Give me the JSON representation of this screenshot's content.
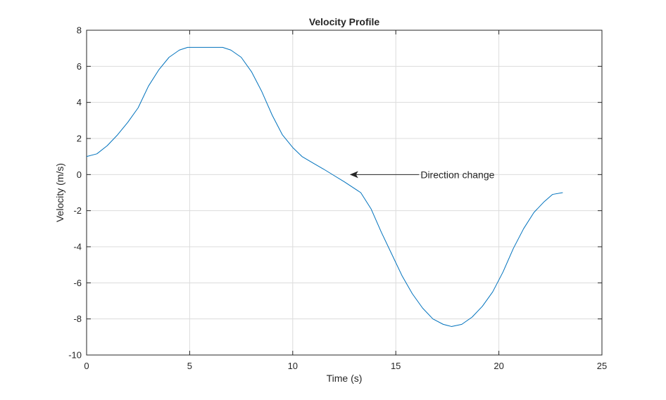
{
  "chart_data": {
    "type": "line",
    "title": "Velocity Profile",
    "xlabel": "Time (s)",
    "ylabel": "Velocity (m/s)",
    "xlim": [
      0,
      25
    ],
    "ylim": [
      -10,
      8
    ],
    "xticks": [
      0,
      5,
      10,
      15,
      20,
      25
    ],
    "yticks": [
      -10,
      -8,
      -6,
      -4,
      -2,
      0,
      2,
      4,
      6,
      8
    ],
    "grid": true,
    "legend": "none",
    "series": [
      {
        "color": "#0072BD",
        "x": [
          0,
          0.5,
          1,
          1.5,
          2,
          2.5,
          3,
          3.5,
          4,
          4.5,
          4.9,
          5.5,
          6,
          6.6,
          7,
          7.5,
          8,
          8.5,
          9,
          9.5,
          10,
          10.45,
          11,
          11.5,
          12,
          12.5,
          13.3,
          13.8,
          14.3,
          14.8,
          15.3,
          15.8,
          16.3,
          16.8,
          17.3,
          17.7,
          18.2,
          18.7,
          19.2,
          19.7,
          20.2,
          20.7,
          21.2,
          21.7,
          22.2,
          22.6,
          23.1
        ],
        "y": [
          1.0,
          1.15,
          1.6,
          2.2,
          2.9,
          3.7,
          4.9,
          5.8,
          6.5,
          6.9,
          7.05,
          7.05,
          7.05,
          7.05,
          6.9,
          6.5,
          5.7,
          4.6,
          3.3,
          2.2,
          1.5,
          1.0,
          0.63,
          0.3,
          -0.05,
          -0.4,
          -1.0,
          -1.9,
          -3.2,
          -4.4,
          -5.6,
          -6.6,
          -7.4,
          -8.0,
          -8.3,
          -8.42,
          -8.3,
          -7.9,
          -7.3,
          -6.5,
          -5.4,
          -4.1,
          -3.0,
          -2.1,
          -1.5,
          -1.1,
          -1.0
        ]
      }
    ],
    "annotations": [
      {
        "text": "Direction change",
        "arrow_tip": [
          12.8,
          0
        ],
        "text_at": [
          16.2,
          0
        ]
      }
    ]
  }
}
